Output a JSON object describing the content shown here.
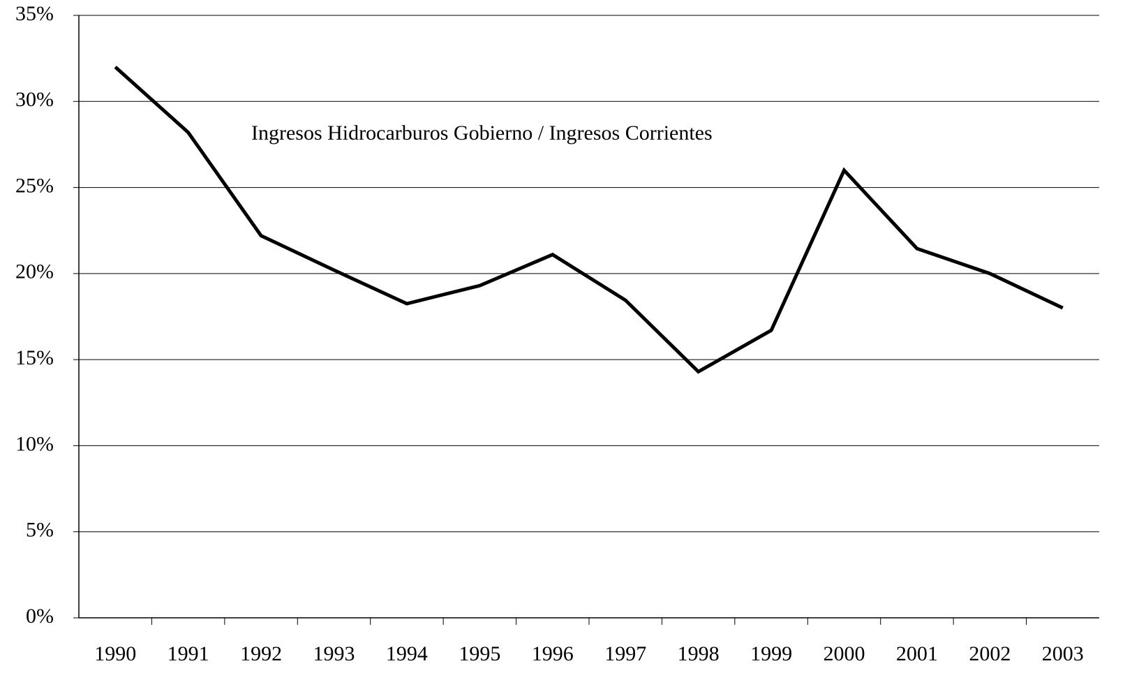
{
  "chart_data": {
    "type": "line",
    "annotation": "Ingresos Hidrocarburos Gobierno / Ingresos Corrientes",
    "categories": [
      "1990",
      "1991",
      "1992",
      "1993",
      "1994",
      "1995",
      "1996",
      "1997",
      "1998",
      "1999",
      "2000",
      "2001",
      "2002",
      "2003"
    ],
    "series": [
      {
        "name": "Ingresos Hidrocarburos Gobierno / Ingresos Corrientes",
        "color": "#000000",
        "values": [
          32,
          28.2,
          22.2,
          20.2,
          18.25,
          19.3,
          21.1,
          18.45,
          14.3,
          16.7,
          26.0,
          21.45,
          20.0,
          18.0
        ]
      }
    ],
    "ylim": [
      0,
      35
    ],
    "yticks": [
      {
        "value": 0,
        "label": "0%"
      },
      {
        "value": 5,
        "label": "5%"
      },
      {
        "value": 10,
        "label": "10%"
      },
      {
        "value": 15,
        "label": "15%"
      },
      {
        "value": 20,
        "label": "20%"
      },
      {
        "value": 25,
        "label": "25%"
      },
      {
        "value": 30,
        "label": "30%"
      },
      {
        "value": 35,
        "label": "35%"
      }
    ],
    "grid": true
  }
}
